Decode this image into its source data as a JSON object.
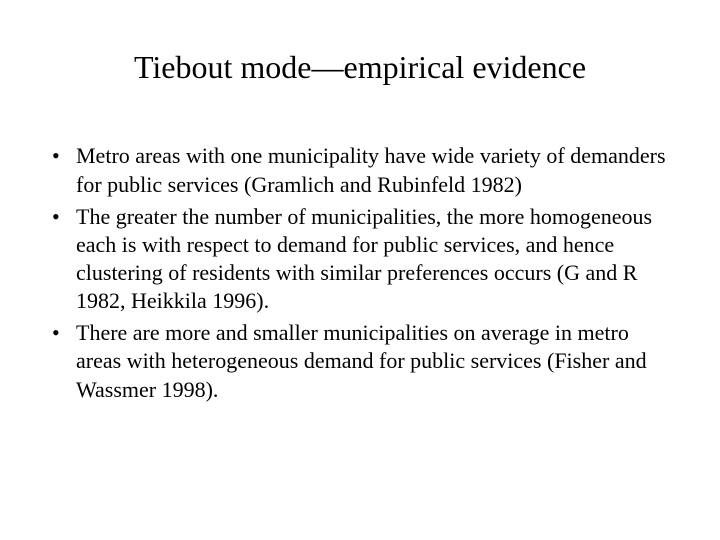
{
  "slide": {
    "title": "Tiebout mode—empirical evidence",
    "title_fontsize": 32,
    "body_fontsize": 22,
    "background_color": "#ffffff",
    "text_color": "#000000",
    "font_family": "Times New Roman",
    "bullets": [
      {
        "text": "Metro areas with one municipality have wide variety of demanders for public services (Gramlich and Rubinfeld 1982)"
      },
      {
        "text": "The greater the number of municipalities, the more homogeneous each is with respect to demand for public services, and hence clustering of residents with similar preferences occurs (G and R 1982, Heikkila 1996)."
      },
      {
        "text": "There are more and smaller municipalities on average in metro areas with heterogeneous demand for public services (Fisher and Wassmer 1998)."
      }
    ]
  }
}
